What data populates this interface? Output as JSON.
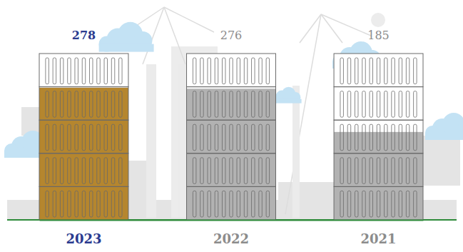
{
  "chart_data": {
    "type": "bar",
    "categories": [
      "2023",
      "2022",
      "2021"
    ],
    "values": [
      278,
      276,
      185
    ],
    "colors": [
      "#b5862e",
      "#b2b2b2",
      "#b2b2b2"
    ],
    "ylim": [
      0,
      350
    ],
    "data_labels": true,
    "tick_labels": "x"
  }
}
